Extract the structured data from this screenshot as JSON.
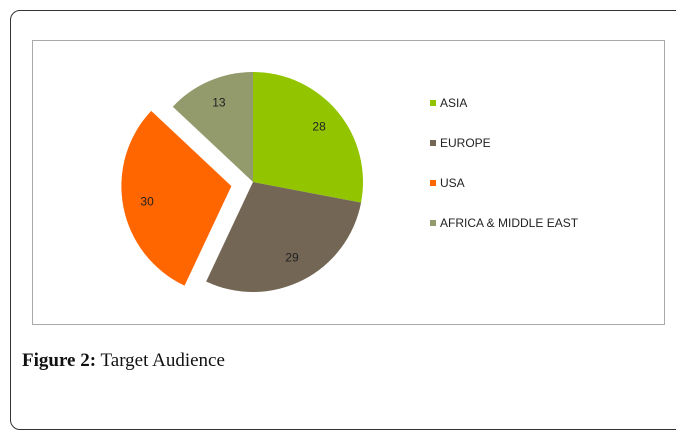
{
  "chart_data": {
    "type": "pie",
    "categories": [
      "ASIA",
      "EUROPE",
      "USA",
      "AFRICA & MIDDLE EAST"
    ],
    "values": [
      28,
      29,
      30,
      13
    ],
    "colors": [
      "#92c500",
      "#736654",
      "#ff6600",
      "#939a6c"
    ],
    "exploded": [
      false,
      false,
      true,
      false
    ],
    "legend": "right"
  },
  "caption": {
    "label": "Figure 2:",
    "text": "Target Audience"
  }
}
